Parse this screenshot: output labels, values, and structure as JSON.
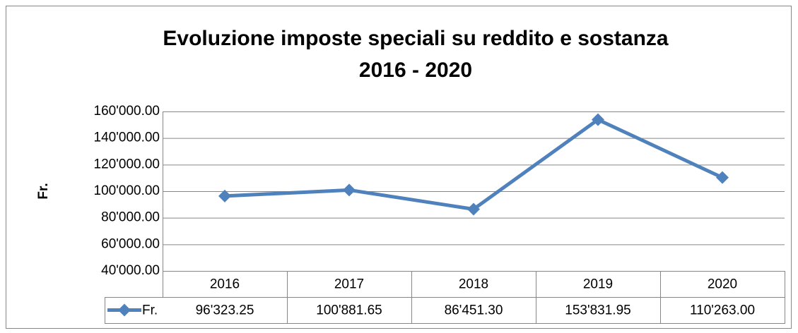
{
  "chart_data": {
    "type": "line",
    "title": "Evoluzione imposte speciali su reddito e sostanza",
    "subtitle": "2016 - 2020",
    "y_label": "Fr.",
    "categories": [
      "2016",
      "2017",
      "2018",
      "2019",
      "2020"
    ],
    "series": [
      {
        "name": "Fr.",
        "color": "#4f81bd",
        "values": [
          96323.25,
          100881.65,
          86451.3,
          153831.95,
          110263.0
        ],
        "value_labels": [
          "96'323.25",
          "100'881.65",
          "86'451.30",
          "153'831.95",
          "110'263.00"
        ]
      }
    ],
    "ylim": [
      40000,
      160000
    ],
    "yticks": [
      {
        "value": 40000,
        "label": "40'000.00"
      },
      {
        "value": 60000,
        "label": "60'000.00"
      },
      {
        "value": 80000,
        "label": "80'000.00"
      },
      {
        "value": 100000,
        "label": "100'000.00"
      },
      {
        "value": 120000,
        "label": "120'000.00"
      },
      {
        "value": 140000,
        "label": "140'000.00"
      },
      {
        "value": 160000,
        "label": "160'000.00"
      }
    ],
    "grid": true
  }
}
